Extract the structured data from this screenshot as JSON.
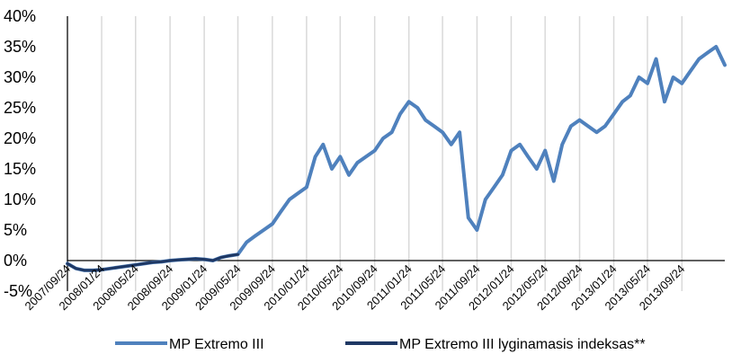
{
  "chart_data": {
    "type": "line",
    "title": "",
    "xlabel": "",
    "ylabel": "",
    "ylim": [
      -5,
      40
    ],
    "yticks": [
      "-5%",
      "0%",
      "5%",
      "10%",
      "15%",
      "20%",
      "25%",
      "30%",
      "35%",
      "40%"
    ],
    "ytick_values": [
      -5,
      0,
      5,
      10,
      15,
      20,
      25,
      30,
      35,
      40
    ],
    "xlim": [
      "2007/09/24",
      "2014/02/24"
    ],
    "xticks": [
      "2007/09/24",
      "2008/01/24",
      "2008/05/24",
      "2008/09/24",
      "2009/01/24",
      "2009/05/24",
      "2009/09/24",
      "2010/01/24",
      "2010/05/24",
      "2010/09/24",
      "2011/01/24",
      "2011/05/24",
      "2011/09/24",
      "2012/01/24",
      "2012/05/24",
      "2012/09/24",
      "2013/01/24",
      "2013/05/24",
      "2013/09/24"
    ],
    "grid": "vertical",
    "legend_position": "bottom",
    "series": [
      {
        "name": "MP Extremo III",
        "color": "#4f81bd",
        "x": [
          "2007/09/24",
          "2007/10/24",
          "2007/11/24",
          "2007/12/24",
          "2008/01/24",
          "2008/02/24",
          "2008/03/24",
          "2008/04/24",
          "2008/05/24",
          "2008/06/24",
          "2008/07/24",
          "2008/08/24",
          "2008/09/24",
          "2008/10/24",
          "2008/11/24",
          "2008/12/24",
          "2009/01/24",
          "2009/02/24",
          "2009/03/24",
          "2009/04/24",
          "2009/05/24",
          "2009/06/24",
          "2009/07/24",
          "2009/08/24",
          "2009/09/24",
          "2009/10/24",
          "2009/11/24",
          "2009/12/24",
          "2010/01/24",
          "2010/02/24",
          "2010/03/24",
          "2010/04/24",
          "2010/05/24",
          "2010/06/24",
          "2010/07/24",
          "2010/08/24",
          "2010/09/24",
          "2010/10/24",
          "2010/11/24",
          "2010/12/24",
          "2011/01/24",
          "2011/02/24",
          "2011/03/24",
          "2011/04/24",
          "2011/05/24",
          "2011/06/24",
          "2011/07/24",
          "2011/08/24",
          "2011/09/24",
          "2011/10/24",
          "2011/11/24",
          "2011/12/24",
          "2012/01/24",
          "2012/02/24",
          "2012/03/24",
          "2012/04/24",
          "2012/05/24",
          "2012/06/24",
          "2012/07/24",
          "2012/08/24",
          "2012/09/24",
          "2012/10/24",
          "2012/11/24",
          "2012/12/24",
          "2013/01/24",
          "2013/02/24",
          "2013/03/24",
          "2013/04/24",
          "2013/05/24",
          "2013/06/24",
          "2013/07/24",
          "2013/08/24",
          "2013/09/24",
          "2013/10/24",
          "2013/11/24",
          "2013/12/24",
          "2014/01/24",
          "2014/02/24"
        ],
        "values": [
          -0.5,
          -1.3,
          -1.6,
          -1.6,
          -1.5,
          -1.3,
          -1.1,
          -0.9,
          -0.7,
          -0.5,
          -0.3,
          -0.2,
          0.0,
          0.1,
          0.2,
          0.3,
          0.2,
          0.0,
          0.5,
          0.8,
          1.0,
          3.0,
          4.0,
          5.0,
          6.0,
          8.0,
          10.0,
          11.0,
          12.0,
          17.0,
          19.0,
          15.0,
          17.0,
          14.0,
          16.0,
          17.0,
          18.0,
          20.0,
          21.0,
          24.0,
          26.0,
          25.0,
          23.0,
          22.0,
          21.0,
          19.0,
          21.0,
          7.0,
          5.0,
          10.0,
          12.0,
          14.0,
          18.0,
          19.0,
          17.0,
          15.0,
          18.0,
          13.0,
          19.0,
          22.0,
          23.0,
          22.0,
          21.0,
          22.0,
          24.0,
          26.0,
          27.0,
          30.0,
          29.0,
          33.0,
          26.0,
          30.0,
          29.0,
          31.0,
          33.0,
          34.0,
          35.0,
          32.0
        ]
      },
      {
        "name": "MP Extremo III lyginamasis indeksas**",
        "color": "#1f3864",
        "x": [
          "2007/09/24",
          "2007/10/24",
          "2007/11/24",
          "2007/12/24",
          "2008/01/24",
          "2008/02/24",
          "2008/03/24",
          "2008/04/24",
          "2008/05/24",
          "2008/06/24",
          "2008/07/24",
          "2008/08/24",
          "2008/09/24",
          "2008/10/24",
          "2008/11/24",
          "2008/12/24",
          "2009/01/24",
          "2009/02/24",
          "2009/03/24",
          "2009/04/24",
          "2009/05/24"
        ],
        "values": [
          -0.5,
          -1.3,
          -1.6,
          -1.6,
          -1.5,
          -1.3,
          -1.1,
          -0.9,
          -0.7,
          -0.5,
          -0.3,
          -0.2,
          0.0,
          0.1,
          0.2,
          0.3,
          0.2,
          0.0,
          0.5,
          0.8,
          1.0
        ]
      }
    ]
  }
}
